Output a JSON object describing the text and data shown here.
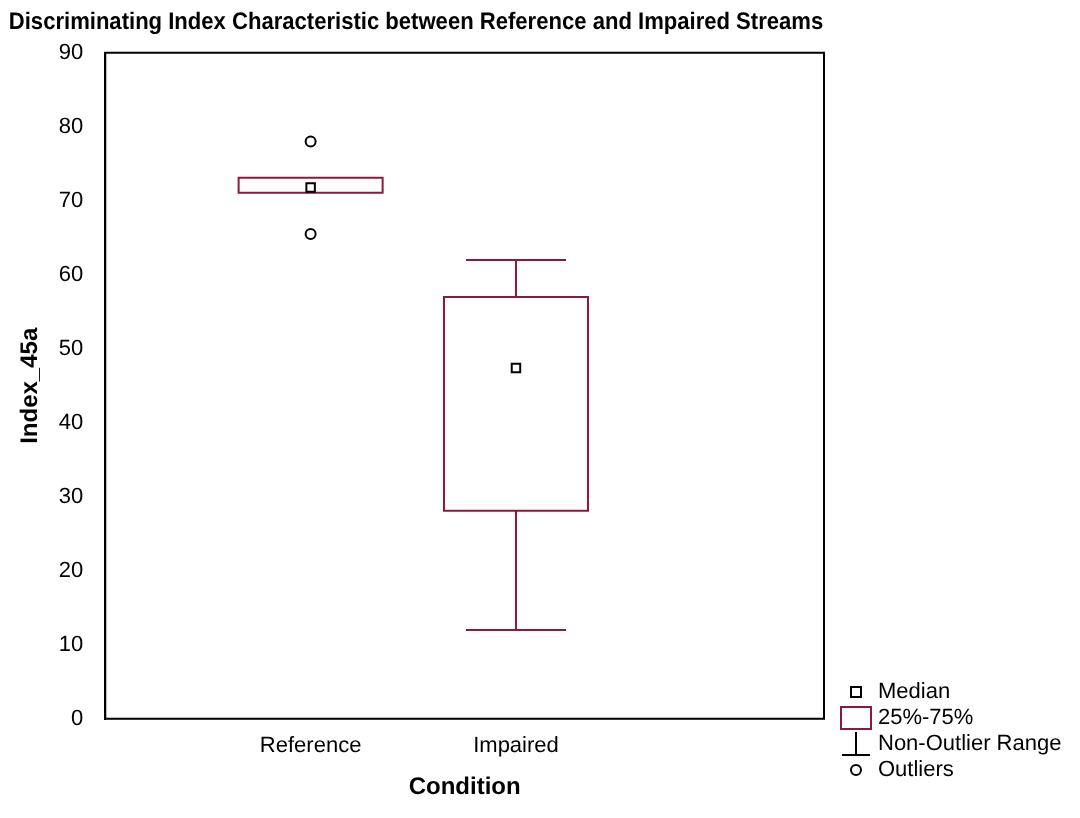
{
  "chart_data": {
    "type": "box",
    "title": "Discriminating Index Characteristic between Reference and Impaired Streams",
    "xlabel": "Condition",
    "ylabel": "Index_45a",
    "categories": [
      "Reference",
      "Impaired"
    ],
    "boxes": [
      {
        "low": 71.1,
        "q1": 71.1,
        "median": 71.8,
        "q3": 73.1,
        "high": 73.1,
        "outliers": [
          78,
          65.5
        ]
      },
      {
        "low": 12,
        "q1": 28.1,
        "median": 47.4,
        "q3": 57,
        "high": 62
      }
    ],
    "color": "#8b1a3a",
    "ylim": [
      0,
      90
    ],
    "yticks": [
      0,
      10,
      20,
      30,
      40,
      50,
      60,
      70,
      80,
      90
    ],
    "grid": false,
    "annotations": [
      "Median",
      "25%-75%",
      "Non-Outlier Range",
      "Outliers"
    ]
  }
}
